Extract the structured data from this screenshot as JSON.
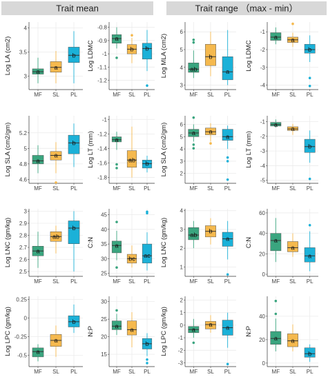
{
  "headers": {
    "left": "Trait mean",
    "right": "Trait range （max - min）"
  },
  "colors": {
    "MF": "#3aa57f",
    "SL": "#f5b94e",
    "PL": "#1bb1d8",
    "header_bg": "#d8d8d8",
    "grid": "#ebebeb"
  },
  "groups": [
    "MF",
    "SL",
    "PL"
  ],
  "chart_data": [
    {
      "type": "box",
      "panel": "Trait mean",
      "ylabel": "Log LA (cm2)",
      "ylim": [
        2.72,
        4.12
      ],
      "yticks": [
        3.0,
        3.5,
        4.0
      ],
      "boxes": [
        {
          "group": "MF",
          "whisker_low": 2.85,
          "q1": 3.04,
          "median": 3.09,
          "q3": 3.15,
          "whisker_high": 3.38,
          "outliers": [],
          "letter": "a"
        },
        {
          "group": "SL",
          "whisker_low": 2.85,
          "q1": 3.08,
          "median": 3.18,
          "q3": 3.3,
          "whisker_high": 3.52,
          "outliers": [],
          "letter": "a"
        },
        {
          "group": "PL",
          "whisker_low": 2.85,
          "q1": 3.28,
          "median": 3.43,
          "q3": 3.6,
          "whisker_high": 3.93,
          "outliers": [],
          "letter": "b"
        }
      ]
    },
    {
      "type": "box",
      "panel": "Trait mean",
      "ylabel": "Log LDMC",
      "ylim": [
        -1.27,
        -0.76
      ],
      "yticks": [
        -0.8,
        -0.9,
        -1.0,
        -1.1,
        -1.2
      ],
      "boxes": [
        {
          "group": "MF",
          "whisker_low": -0.96,
          "q1": -0.92,
          "median": -0.885,
          "q3": -0.855,
          "whisker_high": -0.8,
          "outliers": [
            -1.03
          ],
          "letter": "a"
        },
        {
          "group": "SL",
          "whisker_low": -1.07,
          "q1": -1.0,
          "median": -0.965,
          "q3": -0.93,
          "whisker_high": -0.88,
          "outliers": [
            -0.86
          ],
          "letter": "b"
        },
        {
          "group": "PL",
          "whisker_low": -1.13,
          "q1": -1.04,
          "median": -0.96,
          "q3": -0.92,
          "whisker_high": -0.82,
          "outliers": [
            -1.24
          ],
          "letter": "b"
        }
      ]
    },
    {
      "type": "box",
      "panel": "Trait range",
      "ylabel": "Log MLA (cm2)",
      "ylim": [
        2.75,
        6.55
      ],
      "yticks": [
        3,
        4,
        5,
        6
      ],
      "boxes": [
        {
          "group": "MF",
          "whisker_low": 3.4,
          "q1": 3.72,
          "median": 3.9,
          "q3": 4.25,
          "whisker_high": 4.95,
          "outliers": [
            5.4,
            5.55
          ],
          "letter": "ab"
        },
        {
          "group": "SL",
          "whisker_low": 3.5,
          "q1": 4.1,
          "median": 4.6,
          "q3": 5.3,
          "whisker_high": 6.0,
          "outliers": [],
          "letter": "b"
        },
        {
          "group": "PL",
          "whisker_low": 3.0,
          "q1": 3.3,
          "median": 3.75,
          "q3": 4.6,
          "whisker_high": 6.1,
          "outliers": [],
          "letter": "a"
        }
      ]
    },
    {
      "type": "box",
      "panel": "Trait range",
      "ylabel": "Log LDMC",
      "ylim": [
        -4.25,
        -0.45
      ],
      "yticks": [
        -1,
        -2,
        -3,
        -4
      ],
      "boxes": [
        {
          "group": "MF",
          "whisker_low": -1.7,
          "q1": -1.48,
          "median": -1.3,
          "q3": -1.05,
          "whisker_high": -0.75,
          "outliers": [],
          "letter": "a"
        },
        {
          "group": "SL",
          "whisker_low": -1.85,
          "q1": -1.6,
          "median": -1.45,
          "q3": -1.3,
          "whisker_high": -1.05,
          "outliers": [
            -0.55
          ],
          "letter": "a"
        },
        {
          "group": "PL",
          "whisker_low": -2.7,
          "q1": -2.2,
          "median": -2.0,
          "q3": -1.7,
          "whisker_high": -1.2,
          "outliers": [
            -3.6,
            -4.05
          ],
          "letter": "b"
        }
      ]
    },
    {
      "type": "box",
      "panel": "Trait mean",
      "ylabel": "Log SLA (cm2/gm)",
      "ylim": [
        4.55,
        5.42
      ],
      "yticks": [
        4.6,
        4.8,
        5.0,
        5.2
      ],
      "boxes": [
        {
          "group": "MF",
          "whisker_low": 4.68,
          "q1": 4.8,
          "median": 4.84,
          "q3": 4.91,
          "whisker_high": 5.04,
          "outliers": [],
          "letter": "a"
        },
        {
          "group": "SL",
          "whisker_low": 4.68,
          "q1": 4.85,
          "median": 4.91,
          "q3": 4.96,
          "whisker_high": 5.08,
          "outliers": [
            4.56
          ],
          "letter": "a"
        },
        {
          "group": "PL",
          "whisker_low": 4.76,
          "q1": 4.93,
          "median": 5.07,
          "q3": 5.17,
          "whisker_high": 5.32,
          "outliers": [],
          "letter": "b"
        }
      ]
    },
    {
      "type": "box",
      "panel": "Trait mean",
      "ylabel": "Log LT (mm)",
      "ylim": [
        -1.88,
        -0.95
      ],
      "yticks": [
        -1.0,
        -1.2,
        -1.4,
        -1.6,
        -1.8
      ],
      "boxes": [
        {
          "group": "MF",
          "whisker_low": -1.42,
          "q1": -1.31,
          "median": -1.28,
          "q3": -1.24,
          "whisker_high": -1.17,
          "outliers": [
            -1.62,
            -1.67
          ],
          "letter": "a"
        },
        {
          "group": "SL",
          "whisker_low": -1.8,
          "q1": -1.66,
          "median": -1.56,
          "q3": -1.43,
          "whisker_high": -1.1,
          "outliers": [],
          "letter": "ab"
        },
        {
          "group": "PL",
          "whisker_low": -1.73,
          "q1": -1.67,
          "median": -1.61,
          "q3": -1.56,
          "whisker_high": -1.5,
          "outliers": [],
          "letter": "b"
        }
      ]
    },
    {
      "type": "box",
      "panel": "Trait range",
      "ylabel": "Log SLA (cm2/gm)",
      "ylim": [
        1.2,
        6.7
      ],
      "yticks": [
        2,
        3,
        4,
        5,
        6
      ],
      "boxes": [
        {
          "group": "MF",
          "whisker_low": 4.6,
          "q1": 5.0,
          "median": 5.3,
          "q3": 5.6,
          "whisker_high": 6.0,
          "outliers": [
            6.55,
            4.05,
            4.35
          ],
          "letter": "a"
        },
        {
          "group": "SL",
          "whisker_low": 4.6,
          "q1": 5.15,
          "median": 5.4,
          "q3": 5.7,
          "whisker_high": 6.1,
          "outliers": [
            4.45
          ],
          "letter": "a"
        },
        {
          "group": "PL",
          "whisker_low": 4.0,
          "q1": 4.7,
          "median": 5.0,
          "q3": 5.6,
          "whisker_high": 5.9,
          "outliers": [
            3.3,
            3.0,
            1.5
          ],
          "letter": "a"
        }
      ]
    },
    {
      "type": "box",
      "panel": "Trait range",
      "ylabel": "Log LT (mm)",
      "ylim": [
        -5.2,
        -0.6
      ],
      "yticks": [
        -1,
        -2,
        -3,
        -4,
        -5
      ],
      "boxes": [
        {
          "group": "MF",
          "whisker_low": -1.4,
          "q1": -1.3,
          "median": -1.2,
          "q3": -1.05,
          "whisker_high": -0.85,
          "outliers": [],
          "letter": "a"
        },
        {
          "group": "SL",
          "whisker_low": -1.9,
          "q1": -1.6,
          "median": -1.5,
          "q3": -1.35,
          "whisker_high": -1.15,
          "outliers": [],
          "letter": "a"
        },
        {
          "group": "PL",
          "whisker_low": -3.8,
          "q1": -3.1,
          "median": -2.7,
          "q3": -2.2,
          "whisker_high": -1.6,
          "outliers": [
            -4.9
          ],
          "letter": "b"
        }
      ]
    },
    {
      "type": "box",
      "panel": "Trait mean",
      "ylabel": "Log LNC (gm/kg)",
      "ylim": [
        2.46,
        3.02
      ],
      "yticks": [
        2.5,
        2.6,
        2.7,
        2.8,
        2.9,
        3.0
      ],
      "boxes": [
        {
          "group": "MF",
          "whisker_low": 2.53,
          "q1": 2.63,
          "median": 2.67,
          "q3": 2.71,
          "whisker_high": 2.83,
          "outliers": [],
          "letter": "a"
        },
        {
          "group": "SL",
          "whisker_low": 2.65,
          "q1": 2.75,
          "median": 2.79,
          "q3": 2.83,
          "whisker_high": 2.88,
          "outliers": [],
          "letter": "ab"
        },
        {
          "group": "PL",
          "whisker_low": 2.5,
          "q1": 2.73,
          "median": 2.86,
          "q3": 2.92,
          "whisker_high": 3.0,
          "outliers": [],
          "letter": "b"
        }
      ]
    },
    {
      "type": "box",
      "panel": "Trait mean",
      "ylabel": "C:N",
      "ylim": [
        24,
        47
      ],
      "yticks": [
        25,
        30,
        35,
        40,
        45
      ],
      "boxes": [
        {
          "group": "MF",
          "whisker_low": 29.5,
          "q1": 32.0,
          "median": 34.5,
          "q3": 36.0,
          "whisker_high": 39.5,
          "outliers": [
            42.5,
            27.0
          ],
          "letter": "a"
        },
        {
          "group": "SL",
          "whisker_low": 27.0,
          "q1": 28.5,
          "median": 30.0,
          "q3": 31.5,
          "whisker_high": 34.5,
          "outliers": [],
          "letter": "bc"
        },
        {
          "group": "PL",
          "whisker_low": 26.0,
          "q1": 28.5,
          "median": 31.0,
          "q3": 35.0,
          "whisker_high": 39.0,
          "outliers": [
            45.5,
            46.0
          ],
          "letter": "ac"
        }
      ]
    },
    {
      "type": "box",
      "panel": "Trait range",
      "ylabel": "Log LNC (gm/kg)",
      "ylim": [
        0.5,
        4.1
      ],
      "yticks": [
        1,
        2,
        3,
        4
      ],
      "boxes": [
        {
          "group": "MF",
          "whisker_low": 2.0,
          "q1": 2.45,
          "median": 2.7,
          "q3": 3.1,
          "whisker_high": 3.45,
          "outliers": [],
          "letter": "ab"
        },
        {
          "group": "SL",
          "whisker_low": 2.2,
          "q1": 2.6,
          "median": 2.9,
          "q3": 3.2,
          "whisker_high": 3.6,
          "outliers": [],
          "letter": "b"
        },
        {
          "group": "PL",
          "whisker_low": 1.4,
          "q1": 2.1,
          "median": 2.5,
          "q3": 2.85,
          "whisker_high": 3.45,
          "outliers": [
            0.6
          ],
          "letter": "a"
        }
      ]
    },
    {
      "type": "box",
      "panel": "Trait range",
      "ylabel": "C:N",
      "ylim": [
        -2,
        64
      ],
      "yticks": [
        0,
        20,
        40,
        60
      ],
      "boxes": [
        {
          "group": "MF",
          "whisker_low": 12.0,
          "q1": 23.0,
          "median": 33.0,
          "q3": 40.0,
          "whisker_high": 55.0,
          "outliers": [],
          "letter": "a"
        },
        {
          "group": "SL",
          "whisker_low": 17.0,
          "q1": 22.0,
          "median": 26.0,
          "q3": 32.0,
          "whisker_high": 40.0,
          "outliers": [],
          "letter": "a"
        },
        {
          "group": "PL",
          "whisker_low": 3.0,
          "q1": 12.0,
          "median": 18.0,
          "q3": 26.0,
          "whisker_high": 42.0,
          "outliers": [
            48.0
          ],
          "letter": "a"
        }
      ]
    },
    {
      "type": "box",
      "panel": "Trait mean",
      "ylabel": "Log LPC (gm/kg)",
      "ylim": [
        -0.65,
        0.29
      ],
      "yticks": [
        0.25,
        0.0,
        -0.25,
        -0.5
      ],
      "boxes": [
        {
          "group": "MF",
          "whisker_low": -0.58,
          "q1": -0.52,
          "median": -0.45,
          "q3": -0.4,
          "whisker_high": -0.35,
          "outliers": [],
          "letter": "a"
        },
        {
          "group": "SL",
          "whisker_low": -0.52,
          "q1": -0.38,
          "median": -0.3,
          "q3": -0.22,
          "whisker_high": -0.1,
          "outliers": [],
          "letter": "a"
        },
        {
          "group": "PL",
          "whisker_low": -0.2,
          "q1": -0.12,
          "median": -0.05,
          "q3": 0.03,
          "whisker_high": 0.18,
          "outliers": [],
          "letter": "b"
        }
      ]
    },
    {
      "type": "box",
      "panel": "Trait mean",
      "ylabel": "N:P",
      "ylim": [
        11.5,
        31.5
      ],
      "yticks": [
        15,
        20,
        25,
        30
      ],
      "boxes": [
        {
          "group": "MF",
          "whisker_low": 20.5,
          "q1": 22.0,
          "median": 23.0,
          "q3": 24.5,
          "whisker_high": 26.5,
          "outliers": [
            27.5
          ],
          "letter": "a"
        },
        {
          "group": "SL",
          "whisker_low": 17.0,
          "q1": 20.5,
          "median": 22.0,
          "q3": 24.5,
          "whisker_high": 27.0,
          "outliers": [],
          "letter": "a"
        },
        {
          "group": "PL",
          "whisker_low": 14.5,
          "q1": 16.5,
          "median": 18.0,
          "q3": 19.5,
          "whisker_high": 21.0,
          "outliers": [
            13.5,
            12.5
          ],
          "letter": "b"
        }
      ]
    },
    {
      "type": "box",
      "panel": "Trait range",
      "ylabel": "Log LPC (gm/kg)",
      "ylim": [
        -3.3,
        2.3
      ],
      "yticks": [
        2,
        1,
        0,
        -1,
        -2,
        -3
      ],
      "boxes": [
        {
          "group": "MF",
          "whisker_low": -1.0,
          "q1": -0.6,
          "median": -0.35,
          "q3": -0.1,
          "whisker_high": 0.5,
          "outliers": [
            -1.4
          ],
          "letter": "a"
        },
        {
          "group": "SL",
          "whisker_low": -0.6,
          "q1": -0.3,
          "median": 0.05,
          "q3": 0.3,
          "whisker_high": 0.8,
          "outliers": [],
          "letter": "a"
        },
        {
          "group": "PL",
          "whisker_low": -1.8,
          "q1": -0.8,
          "median": -0.2,
          "q3": 0.4,
          "whisker_high": 1.0,
          "outliers": [
            -3.1
          ],
          "letter": "a"
        }
      ]
    },
    {
      "type": "box",
      "panel": "Trait range",
      "ylabel": "N:P",
      "ylim": [
        -3,
        57
      ],
      "yticks": [
        0,
        20,
        40
      ],
      "boxes": [
        {
          "group": "MF",
          "whisker_low": 10.0,
          "q1": 16.0,
          "median": 21.0,
          "q3": 27.0,
          "whisker_high": 38.0,
          "outliers": [
            42.0,
            53.0
          ],
          "letter": "a"
        },
        {
          "group": "SL",
          "whisker_low": 10.0,
          "q1": 14.0,
          "median": 19.0,
          "q3": 25.0,
          "whisker_high": 33.0,
          "outliers": [],
          "letter": "a"
        },
        {
          "group": "PL",
          "whisker_low": 1.0,
          "q1": 5.0,
          "median": 8.0,
          "q3": 13.0,
          "whisker_high": 16.0,
          "outliers": [],
          "letter": "b"
        }
      ]
    }
  ]
}
